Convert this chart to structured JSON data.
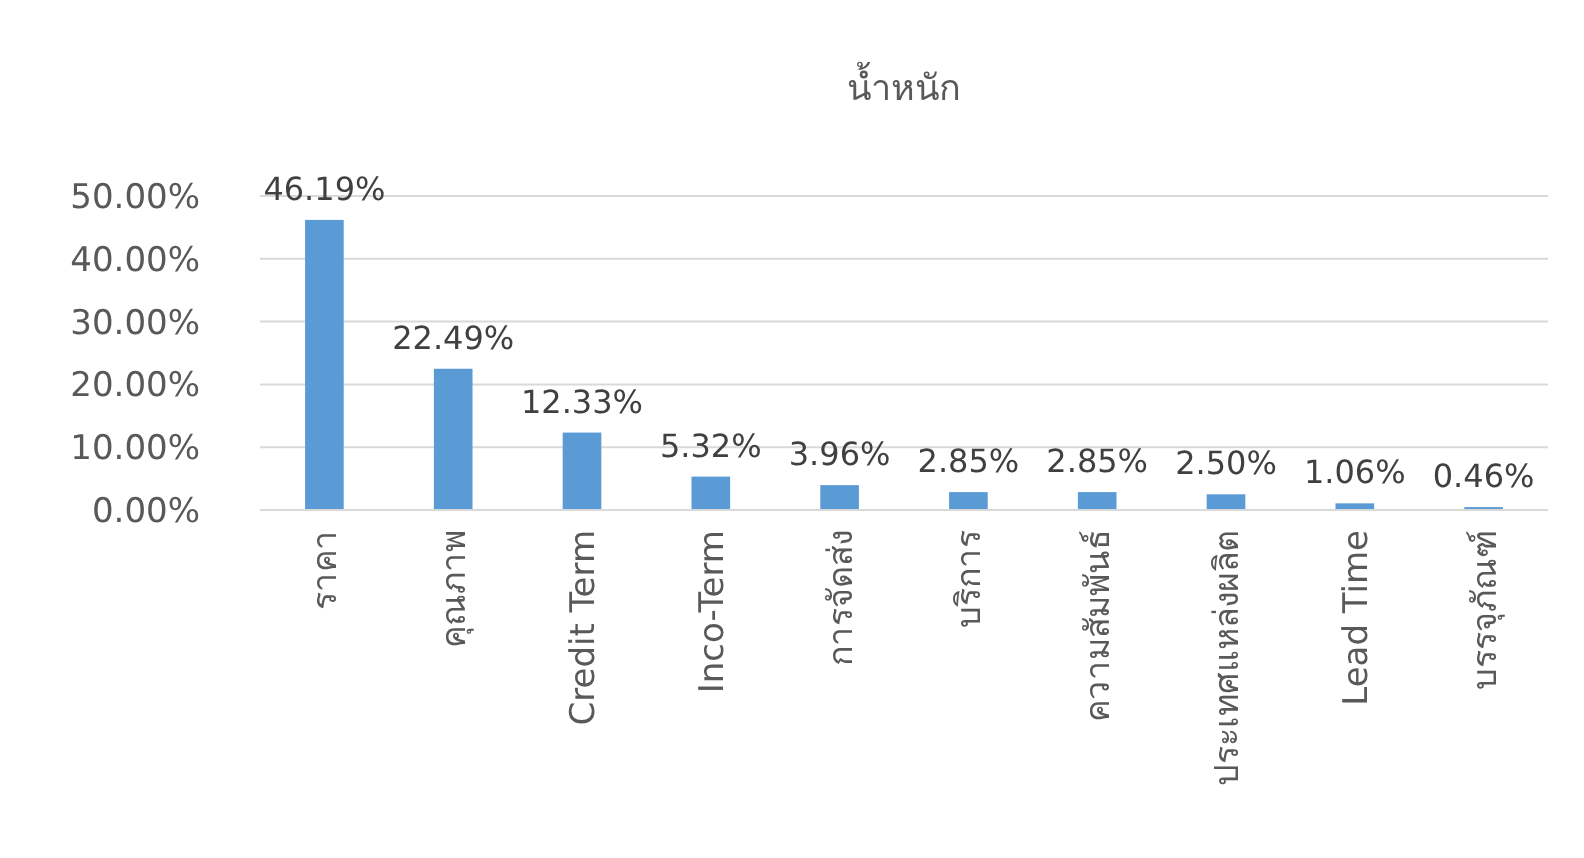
{
  "chart_data": {
    "type": "bar",
    "title": "น้ำหนัก",
    "categories": [
      "ราคา",
      "คุณภาพ",
      "Credit Term",
      "Inco-Term",
      "การจัดส่ง",
      "บริการ",
      "ความสัมพันธ์",
      "ประเทศแหล่งผลิต",
      "Lead Time",
      "บรรจุภัณฑ์"
    ],
    "values": [
      46.19,
      22.49,
      12.33,
      5.32,
      3.96,
      2.85,
      2.85,
      2.5,
      1.06,
      0.46
    ],
    "value_labels": [
      "46.19%",
      "22.49%",
      "12.33%",
      "5.32%",
      "3.96%",
      "2.85%",
      "2.85%",
      "2.50%",
      "1.06%",
      "0.46%"
    ],
    "color": "#5b9bd5",
    "ylim": [
      0,
      50
    ],
    "yticks": [
      {
        "value": 0,
        "label": "0.00%"
      },
      {
        "value": 10,
        "label": "10.00%"
      },
      {
        "value": 20,
        "label": "20.00%"
      },
      {
        "value": 30,
        "label": "30.00%"
      },
      {
        "value": 40,
        "label": "40.00%"
      },
      {
        "value": 50,
        "label": "50.00%"
      }
    ],
    "grid": "y"
  }
}
